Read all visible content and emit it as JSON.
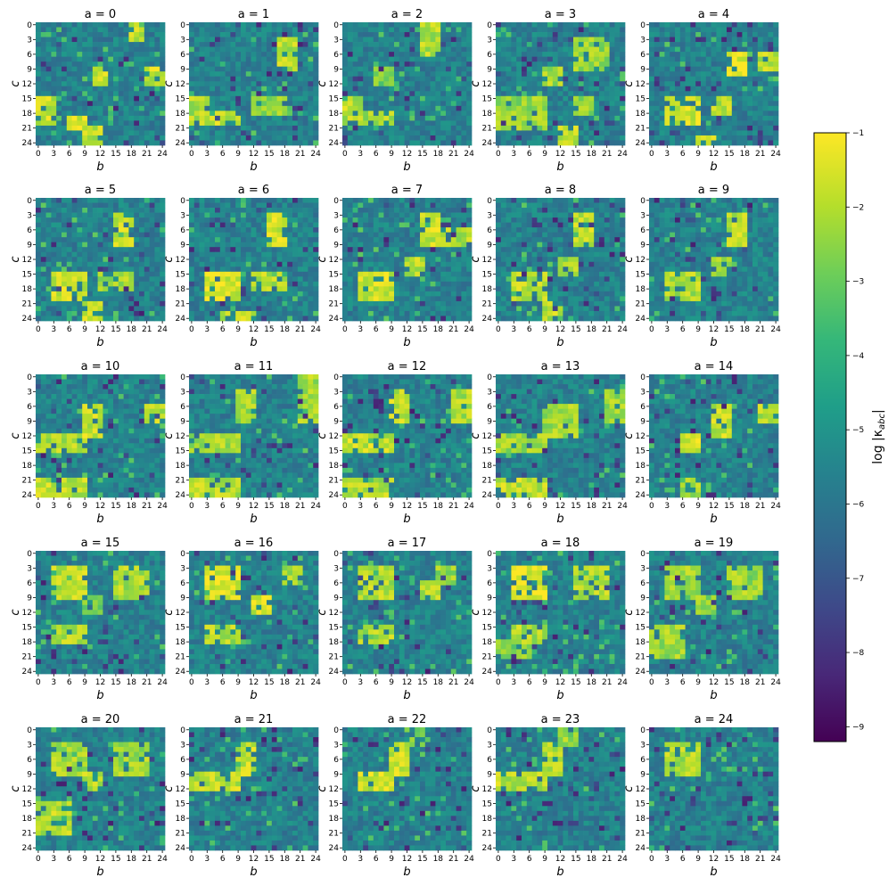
{
  "chart_data": {
    "type": "heatmap",
    "layout": "5x5 grid of heatmaps, one per index a",
    "panels": [
      {
        "a": 0,
        "title": "a = 0"
      },
      {
        "a": 1,
        "title": "a = 1"
      },
      {
        "a": 2,
        "title": "a = 2"
      },
      {
        "a": 3,
        "title": "a = 3"
      },
      {
        "a": 4,
        "title": "a = 4"
      },
      {
        "a": 5,
        "title": "a = 5"
      },
      {
        "a": 6,
        "title": "a = 6"
      },
      {
        "a": 7,
        "title": "a = 7"
      },
      {
        "a": 8,
        "title": "a = 8"
      },
      {
        "a": 9,
        "title": "a = 9"
      },
      {
        "a": 10,
        "title": "a = 10"
      },
      {
        "a": 11,
        "title": "a = 11"
      },
      {
        "a": 12,
        "title": "a = 12"
      },
      {
        "a": 13,
        "title": "a = 13"
      },
      {
        "a": 14,
        "title": "a = 14"
      },
      {
        "a": 15,
        "title": "a = 15"
      },
      {
        "a": 16,
        "title": "a = 16"
      },
      {
        "a": 17,
        "title": "a = 17"
      },
      {
        "a": 18,
        "title": "a = 18"
      },
      {
        "a": 19,
        "title": "a = 19"
      },
      {
        "a": 20,
        "title": "a = 20"
      },
      {
        "a": 21,
        "title": "a = 21"
      },
      {
        "a": 22,
        "title": "a = 22"
      },
      {
        "a": 23,
        "title": "a = 23"
      },
      {
        "a": 24,
        "title": "a = 24"
      }
    ],
    "xlabel": "b",
    "ylabel": "c",
    "grid_size": 25,
    "tick_labels": [
      "0",
      "3",
      "6",
      "9",
      "12",
      "15",
      "18",
      "21",
      "24"
    ],
    "colorbar": {
      "label": "log |κ_abc|",
      "label_main": "log |κ",
      "label_sub": "abc",
      "label_end": "|",
      "range": [
        -9.2,
        -1.0
      ],
      "ticks": [
        "−1",
        "−2",
        "−3",
        "−4",
        "−5",
        "−6",
        "−7",
        "−8",
        "−9"
      ],
      "tick_values": [
        -1,
        -2,
        -3,
        -4,
        -5,
        -6,
        -7,
        -8,
        -9
      ],
      "colormap": "viridis",
      "colors": [
        "#440154",
        "#482878",
        "#3e4989",
        "#31688e",
        "#26828e",
        "#1f9e89",
        "#35b779",
        "#6ece58",
        "#b5de2b",
        "#fde725"
      ]
    },
    "note": "Cell values estimated from image: background about -5.5, bright blocks near -1.5, dark cells near -8."
  }
}
